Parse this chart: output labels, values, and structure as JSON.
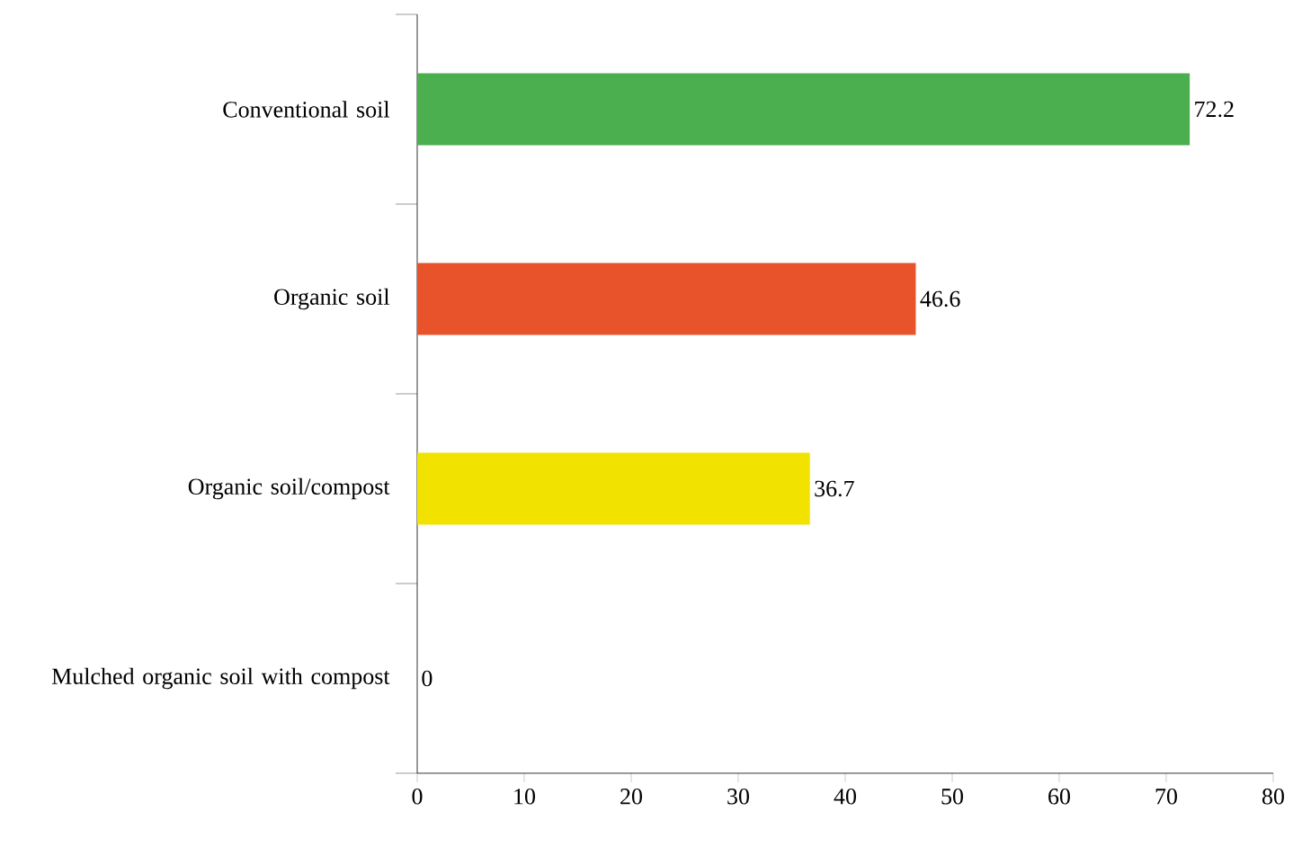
{
  "chart_data": {
    "type": "bar",
    "orientation": "horizontal",
    "categories": [
      "Conventional soil",
      "Organic soil",
      "Organic soil/compost",
      "Mulched organic soil with compost"
    ],
    "values": [
      72.2,
      46.6,
      36.7,
      0
    ],
    "colors": [
      "#4bae4f",
      "#e9532c",
      "#f1e200",
      "#4a7fc1"
    ],
    "xlim": [
      0,
      80
    ],
    "xticks": [
      0,
      10,
      20,
      30,
      40,
      50,
      60,
      70,
      80
    ],
    "data_labels": true
  }
}
